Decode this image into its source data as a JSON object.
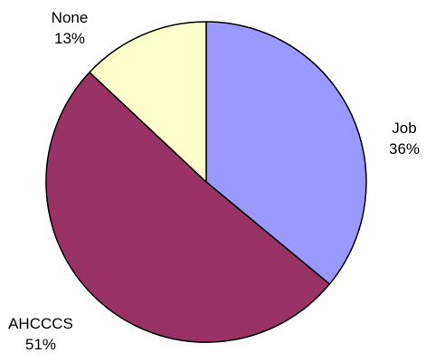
{
  "chart_data": {
    "type": "pie",
    "title": "",
    "slices": [
      {
        "label": "Job",
        "value": 36,
        "value_label": "36%",
        "color": "#9999ff"
      },
      {
        "label": "AHCCCS",
        "value": 51,
        "value_label": "51%",
        "color": "#993366"
      },
      {
        "label": "None",
        "value": 13,
        "value_label": "13%",
        "color": "#ffffcc"
      }
    ],
    "start": "12 o'clock",
    "direction": "clockwise",
    "slice_border_color": "#000000",
    "legend": "none"
  }
}
